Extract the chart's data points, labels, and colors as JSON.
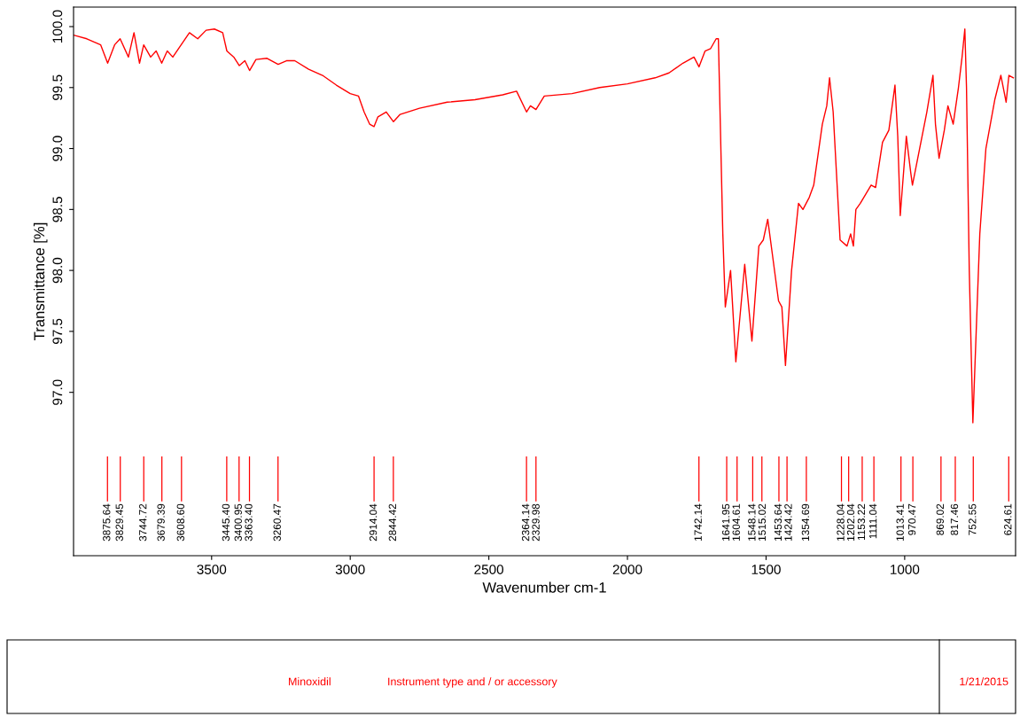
{
  "chart_data": {
    "type": "line",
    "xlabel": "Wavenumber cm-1",
    "ylabel": "Transmittance [%]",
    "xlim": [
      3998,
      600
    ],
    "xticks": [
      3500,
      3000,
      2500,
      2000,
      1500,
      1000
    ],
    "ylim": [
      95.66,
      100.16
    ],
    "yticks": [
      {
        "value": 97.0,
        "label": "97.0"
      },
      {
        "value": 97.5,
        "label": "97.5"
      },
      {
        "value": 98.0,
        "label": "98.0"
      },
      {
        "value": 98.5,
        "label": "98.5"
      },
      {
        "value": 99.0,
        "label": "99.0"
      },
      {
        "value": 99.5,
        "label": "99.5"
      },
      {
        "value": 100.0,
        "label": "100.0"
      }
    ],
    "grid": false,
    "legend": false,
    "marker": "none",
    "line_style": "solid",
    "series": [
      {
        "color": "#ff0000",
        "x": [
          3998,
          3950,
          3900,
          3875,
          3850,
          3830,
          3800,
          3780,
          3760,
          3745,
          3720,
          3700,
          3680,
          3660,
          3640,
          3610,
          3580,
          3550,
          3520,
          3490,
          3460,
          3445,
          3420,
          3400,
          3380,
          3363,
          3340,
          3300,
          3260,
          3230,
          3200,
          3150,
          3100,
          3050,
          3000,
          2970,
          2950,
          2930,
          2914,
          2900,
          2870,
          2844,
          2820,
          2750,
          2650,
          2550,
          2450,
          2400,
          2364,
          2350,
          2330,
          2300,
          2200,
          2100,
          2000,
          1900,
          1850,
          1800,
          1760,
          1742,
          1720,
          1700,
          1690,
          1680,
          1672,
          1656,
          1647,
          1628,
          1609,
          1577,
          1551,
          1526,
          1510,
          1494,
          1455,
          1443,
          1430,
          1408,
          1383,
          1367,
          1344,
          1328,
          1297,
          1281,
          1271,
          1258,
          1233,
          1208,
          1195,
          1185,
          1176,
          1160,
          1121,
          1105,
          1080,
          1057,
          1035,
          1025,
          1016,
          994,
          978,
          972,
          946,
          920,
          898,
          889,
          876,
          857,
          844,
          825,
          806,
          793,
          783,
          777,
          767,
          754,
          742,
          729,
          707,
          675,
          653,
          634,
          624,
          608
        ],
        "values": [
          99.93,
          99.9,
          99.85,
          99.7,
          99.85,
          99.9,
          99.75,
          99.95,
          99.7,
          99.85,
          99.75,
          99.8,
          99.7,
          99.8,
          99.75,
          99.85,
          99.95,
          99.9,
          99.97,
          99.98,
          99.95,
          99.8,
          99.75,
          99.68,
          99.72,
          99.64,
          99.73,
          99.74,
          99.69,
          99.72,
          99.72,
          99.65,
          99.6,
          99.52,
          99.45,
          99.43,
          99.3,
          99.2,
          99.18,
          99.26,
          99.3,
          99.22,
          99.28,
          99.33,
          99.38,
          99.4,
          99.44,
          99.47,
          99.3,
          99.35,
          99.32,
          99.43,
          99.45,
          99.5,
          99.53,
          99.58,
          99.62,
          99.7,
          99.75,
          99.67,
          99.8,
          99.82,
          99.86,
          99.9,
          99.9,
          98.3,
          97.7,
          98.0,
          97.25,
          98.05,
          97.42,
          98.2,
          98.25,
          98.42,
          97.75,
          97.7,
          97.22,
          98.0,
          98.55,
          98.5,
          98.6,
          98.7,
          99.2,
          99.35,
          99.58,
          99.3,
          98.25,
          98.2,
          98.3,
          98.2,
          98.5,
          98.55,
          98.7,
          98.68,
          99.05,
          99.15,
          99.52,
          99.1,
          98.45,
          99.1,
          98.8,
          98.7,
          99.0,
          99.3,
          99.6,
          99.2,
          98.92,
          99.15,
          99.35,
          99.2,
          99.5,
          99.75,
          99.98,
          99.5,
          98.0,
          96.75,
          97.5,
          98.3,
          99.0,
          99.4,
          99.6,
          99.38,
          99.6,
          99.58
        ]
      }
    ],
    "ref_lines": [
      {
        "axis": "x",
        "value": 3875.64,
        "label": "3875.64"
      },
      {
        "axis": "x",
        "value": 3829.45,
        "label": "3829.45"
      },
      {
        "axis": "x",
        "value": 3744.72,
        "label": "3744.72"
      },
      {
        "axis": "x",
        "value": 3679.39,
        "label": "3679.39"
      },
      {
        "axis": "x",
        "value": 3608.6,
        "label": "3608.60"
      },
      {
        "axis": "x",
        "value": 3445.4,
        "label": "3445.40"
      },
      {
        "axis": "x",
        "value": 3400.95,
        "label": "3400.95"
      },
      {
        "axis": "x",
        "value": 3363.4,
        "label": "3363.40"
      },
      {
        "axis": "x",
        "value": 3260.47,
        "label": "3260.47"
      },
      {
        "axis": "x",
        "value": 2914.04,
        "label": "2914.04"
      },
      {
        "axis": "x",
        "value": 2844.42,
        "label": "2844.42"
      },
      {
        "axis": "x",
        "value": 2364.14,
        "label": "2364.14"
      },
      {
        "axis": "x",
        "value": 2329.98,
        "label": "2329.98"
      },
      {
        "axis": "x",
        "value": 1742.14,
        "label": "1742.14"
      },
      {
        "axis": "x",
        "value": 1641.95,
        "label": "1641.95"
      },
      {
        "axis": "x",
        "value": 1604.61,
        "label": "1604.61"
      },
      {
        "axis": "x",
        "value": 1548.14,
        "label": "1548.14"
      },
      {
        "axis": "x",
        "value": 1515.02,
        "label": "1515.02"
      },
      {
        "axis": "x",
        "value": 1453.64,
        "label": "1453.64"
      },
      {
        "axis": "x",
        "value": 1424.42,
        "label": "1424.42"
      },
      {
        "axis": "x",
        "value": 1354.69,
        "label": "1354.69"
      },
      {
        "axis": "x",
        "value": 1228.04,
        "label": "1228.04"
      },
      {
        "axis": "x",
        "value": 1202.04,
        "label": "1202.04"
      },
      {
        "axis": "x",
        "value": 1153.22,
        "label": "1153.22"
      },
      {
        "axis": "x",
        "value": 1111.04,
        "label": "1111.04"
      },
      {
        "axis": "x",
        "value": 1013.41,
        "label": "1013.41"
      },
      {
        "axis": "x",
        "value": 970.47,
        "label": "970.47"
      },
      {
        "axis": "x",
        "value": 869.02,
        "label": "869.02"
      },
      {
        "axis": "x",
        "value": 817.46,
        "label": "817.46"
      },
      {
        "axis": "x",
        "value": 752.55,
        "label": "752.55"
      },
      {
        "axis": "x",
        "value": 624.61,
        "label": "624.61"
      }
    ],
    "annotations": [
      "Minoxidil",
      "Instrument type and / or accessory",
      "1/21/2015"
    ]
  }
}
